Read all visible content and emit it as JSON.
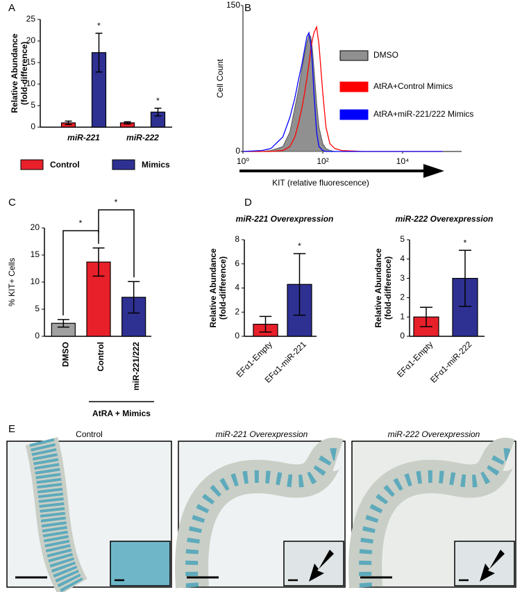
{
  "panel_labels": [
    "A",
    "B",
    "C",
    "D",
    "E"
  ],
  "chart_data": [
    {
      "type": "bar",
      "ylabel": [
        "Relative Abundance",
        "(fold-difference)"
      ],
      "categories": [
        "miR-221",
        "miR-222"
      ],
      "series": [
        {
          "name": "Control",
          "color": "#e8202a",
          "values": [
            1.0,
            1.0
          ],
          "errors": [
            0.4,
            0.25
          ]
        },
        {
          "name": "Mimics",
          "color": "#2e3192",
          "values": [
            17.3,
            3.5
          ],
          "errors": [
            4.5,
            0.9
          ]
        }
      ],
      "ylim": [
        0,
        25
      ],
      "yticks": [
        0,
        5,
        10,
        15,
        20,
        25
      ],
      "annotations": [
        "*",
        "*"
      ]
    },
    {
      "type": "histogram-line",
      "xscale": "log",
      "ylabel": "Cell Count",
      "xlabel": "KIT (relative fluorescence)",
      "x": [
        1,
        3,
        5,
        10,
        15,
        20,
        25,
        30,
        35,
        40,
        45,
        50,
        55,
        60,
        70,
        80,
        100,
        120,
        150,
        200,
        300,
        1000,
        10000,
        100000
      ],
      "series": [
        {
          "name": "DMSO",
          "color": "#909090",
          "values": [
            0,
            0,
            1,
            5,
            20,
            45,
            65,
            85,
            100,
            112,
            120,
            118,
            105,
            85,
            50,
            25,
            8,
            3,
            1,
            0,
            0,
            0,
            0,
            0
          ]
        },
        {
          "name": "AtRA+Control Mimics",
          "color": "#ff0000",
          "values": [
            0,
            0,
            0,
            1,
            5,
            15,
            30,
            45,
            60,
            75,
            90,
            105,
            115,
            122,
            128,
            110,
            60,
            25,
            8,
            3,
            1,
            0,
            0,
            0
          ]
        },
        {
          "name": "AtRA+miR-221/222 Mimics",
          "color": "#0000ff",
          "values": [
            0,
            1,
            3,
            15,
            35,
            55,
            75,
            90,
            105,
            118,
            122,
            110,
            90,
            60,
            20,
            5,
            1,
            0,
            0,
            0,
            0,
            0,
            0,
            0
          ]
        }
      ],
      "xlim": [
        1,
        300000
      ],
      "xticks": [
        {
          "value": 1,
          "label": "10⁰"
        },
        {
          "value": 100,
          "label": "10²"
        },
        {
          "value": 10000,
          "label": "10⁴"
        }
      ],
      "ylim": [
        0,
        150
      ],
      "yticks": [
        0,
        150
      ]
    },
    {
      "type": "bar",
      "ylabel": "% KIT+ Cells",
      "categories": [
        "DMSO",
        "Control",
        "miR-221/222"
      ],
      "values": [
        2.4,
        13.7,
        7.2
      ],
      "errors": [
        0.7,
        2.6,
        2.9
      ],
      "colors": [
        "#a0a0a0",
        "#e8202a",
        "#2e3192"
      ],
      "ylim": [
        0,
        20
      ],
      "yticks": [
        0,
        5,
        10,
        15,
        20
      ],
      "group_label": "AtRA + Mimics",
      "annotations": [
        "*",
        "*"
      ]
    },
    {
      "type": "bar",
      "title": "miR-221 Overexpression",
      "ylabel": [
        "Relative Abundance",
        "(fold-difference)"
      ],
      "categories": [
        "EFα1-Empty",
        "EFα1-miR-221"
      ],
      "values": [
        1.0,
        4.3
      ],
      "errors": [
        0.65,
        2.55
      ],
      "colors": [
        "#e8202a",
        "#2e3192"
      ],
      "ylim": [
        0,
        8
      ],
      "yticks": [
        0,
        2,
        4,
        6,
        8
      ],
      "annotations": [
        "*"
      ]
    },
    {
      "type": "bar",
      "title": "miR-222 Overexpression",
      "ylabel": [
        "Relative Abundance",
        "(fold-difference)"
      ],
      "categories": [
        "EFα1-Empty",
        "EFα1-miR-222"
      ],
      "values": [
        1.0,
        3.0
      ],
      "errors": [
        0.5,
        1.45
      ],
      "colors": [
        "#e8202a",
        "#2e3192"
      ],
      "ylim": [
        0,
        5
      ],
      "yticks": [
        0,
        1,
        2,
        3,
        4,
        5
      ],
      "annotations": [
        "*"
      ]
    }
  ],
  "images": [
    {
      "title": "Control"
    },
    {
      "title": "miR-221 Overexpression"
    },
    {
      "title": "miR-222 Overexpression"
    }
  ]
}
